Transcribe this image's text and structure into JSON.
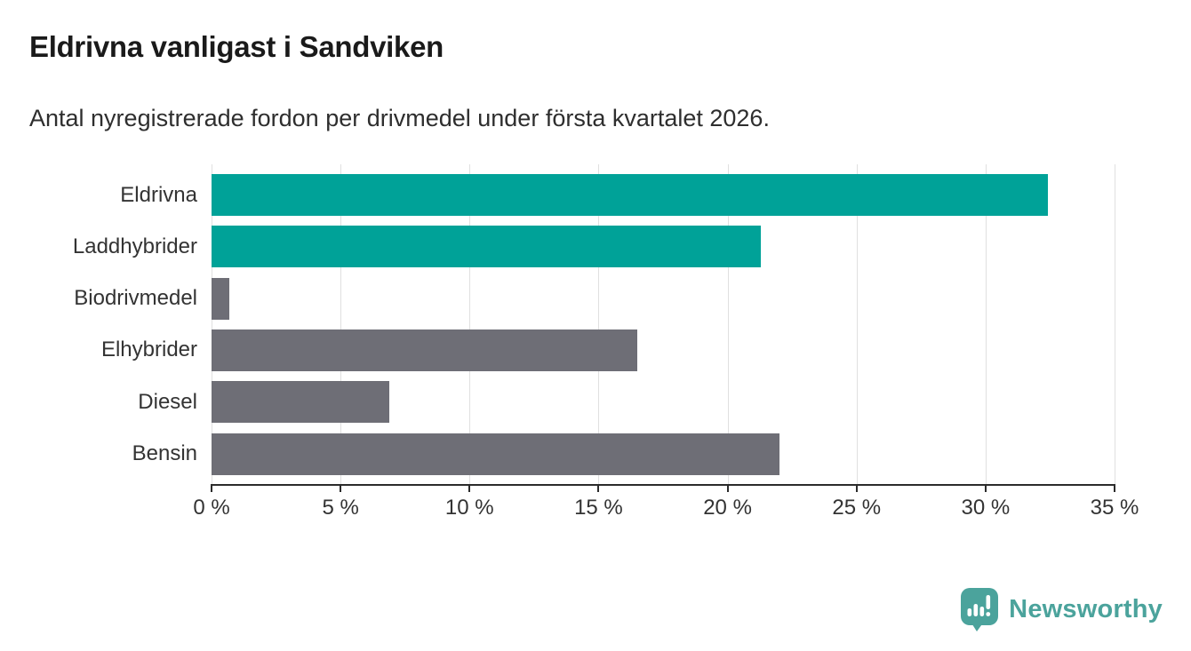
{
  "header": {
    "title": "Eldrivna vanligast i Sandviken",
    "subtitle": "Antal nyregistrerade fordon per drivmedel under första kvartalet 2026."
  },
  "chart_data": {
    "type": "bar",
    "orientation": "horizontal",
    "title": "Eldrivna vanligast i Sandviken",
    "subtitle": "Antal nyregistrerade fordon per drivmedel under första kvartalet 2026.",
    "categories": [
      "Eldrivna",
      "Laddhybrider",
      "Biodrivmedel",
      "Elhybrider",
      "Diesel",
      "Bensin"
    ],
    "values": [
      32.4,
      21.3,
      0.7,
      16.5,
      6.9,
      22.0
    ],
    "unit": "%",
    "highlighted": [
      true,
      true,
      false,
      false,
      false,
      false
    ],
    "xlim": [
      0,
      35
    ],
    "x_ticks": [
      0,
      5,
      10,
      15,
      20,
      25,
      30,
      35
    ],
    "x_tick_labels": [
      "0 %",
      "5 %",
      "10 %",
      "15 %",
      "20 %",
      "25 %",
      "30 %",
      "35 %"
    ],
    "grid": true,
    "legend": false
  },
  "colors": {
    "bar_highlight": "#00A298",
    "bar_default": "#6E6E76",
    "logo_teal": "#4BA39C",
    "grid_line": "#E0E0E0",
    "axis_line": "#2B2B2B",
    "title_text": "#1A1A1A",
    "body_text": "#333333"
  },
  "footer": {
    "brand": "Newsworthy",
    "logo_icon": "newsworthy-speech-bubble-bar-chart-icon"
  }
}
